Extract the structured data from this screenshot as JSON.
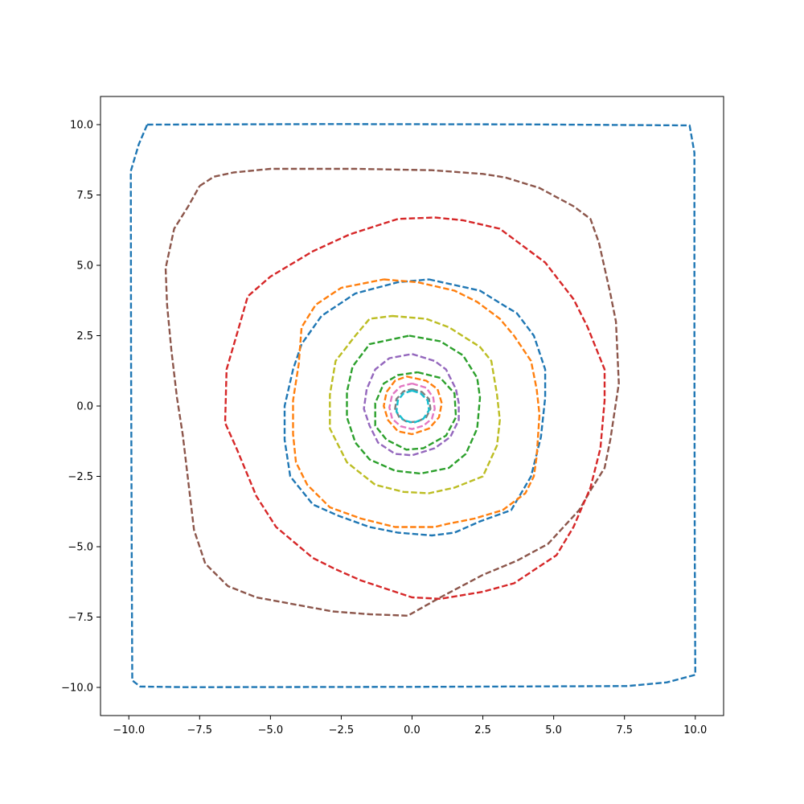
{
  "chart_data": {
    "type": "line",
    "title": "",
    "xlabel": "",
    "ylabel": "",
    "xlim": [
      -11,
      11
    ],
    "ylim": [
      -11,
      11
    ],
    "grid": false,
    "xticks": [
      -10.0,
      -7.5,
      -5.0,
      -2.5,
      0.0,
      2.5,
      5.0,
      7.5,
      10.0
    ],
    "yticks": [
      -10.0,
      -7.5,
      -5.0,
      -2.5,
      0.0,
      2.5,
      5.0,
      7.5,
      10.0
    ],
    "xtick_labels": [
      "−10.0",
      "−7.5",
      "−5.0",
      "−2.5",
      "0.0",
      "2.5",
      "5.0",
      "7.5",
      "10.0"
    ],
    "ytick_labels": [
      "−10.0",
      "−7.5",
      "−5.0",
      "−2.5",
      "0.0",
      "2.5",
      "5.0",
      "7.5",
      "10.0"
    ],
    "series": [
      {
        "color": "#1f77b4",
        "points": [
          [
            -9.35,
            10.0
          ],
          [
            -3.0,
            10.02
          ],
          [
            4.0,
            10.01
          ],
          [
            9.8,
            9.97
          ],
          [
            9.97,
            9.0
          ],
          [
            9.97,
            2.0
          ],
          [
            9.98,
            -5.0
          ],
          [
            10.0,
            -9.55
          ],
          [
            9.0,
            -9.82
          ],
          [
            7.6,
            -9.95
          ],
          [
            0.0,
            -9.98
          ],
          [
            -8.0,
            -9.99
          ],
          [
            -9.6,
            -9.97
          ],
          [
            -9.88,
            -9.75
          ],
          [
            -9.9,
            -5.0
          ],
          [
            -9.92,
            2.0
          ],
          [
            -9.93,
            8.35
          ],
          [
            -9.65,
            9.3
          ],
          [
            -9.35,
            10.0
          ]
        ]
      },
      {
        "color": "#8c564b",
        "points": [
          [
            -7.5,
            7.82
          ],
          [
            -7.0,
            8.15
          ],
          [
            -6.3,
            8.3
          ],
          [
            -5.0,
            8.43
          ],
          [
            -2.0,
            8.43
          ],
          [
            0.7,
            8.38
          ],
          [
            2.5,
            8.25
          ],
          [
            3.3,
            8.12
          ],
          [
            4.5,
            7.75
          ],
          [
            5.7,
            7.1
          ],
          [
            6.3,
            6.65
          ],
          [
            6.6,
            5.8
          ],
          [
            7.0,
            4.0
          ],
          [
            7.2,
            3.0
          ],
          [
            7.3,
            0.8
          ],
          [
            7.0,
            -1.2
          ],
          [
            6.8,
            -2.2
          ],
          [
            6.3,
            -3.0
          ],
          [
            5.9,
            -3.7
          ],
          [
            4.8,
            -4.9
          ],
          [
            3.7,
            -5.5
          ],
          [
            2.5,
            -6.0
          ],
          [
            1.0,
            -6.8
          ],
          [
            -0.15,
            -7.45
          ],
          [
            -1.5,
            -7.4
          ],
          [
            -2.8,
            -7.3
          ],
          [
            -5.5,
            -6.8
          ],
          [
            -6.5,
            -6.4
          ],
          [
            -7.3,
            -5.6
          ],
          [
            -7.7,
            -4.4
          ],
          [
            -8.1,
            -1.0
          ],
          [
            -8.3,
            0.3
          ],
          [
            -8.5,
            2.0
          ],
          [
            -8.65,
            3.6
          ],
          [
            -8.7,
            4.9
          ],
          [
            -8.4,
            6.3
          ],
          [
            -7.9,
            7.1
          ],
          [
            -7.5,
            7.82
          ]
        ]
      },
      {
        "color": "#d62728",
        "points": [
          [
            0.8,
            6.7
          ],
          [
            1.8,
            6.6
          ],
          [
            3.1,
            6.3
          ],
          [
            4.7,
            5.1
          ],
          [
            5.7,
            3.8
          ],
          [
            6.2,
            2.8
          ],
          [
            6.8,
            1.3
          ],
          [
            6.8,
            0.2
          ],
          [
            6.65,
            -1.5
          ],
          [
            6.3,
            -2.9
          ],
          [
            5.7,
            -4.3
          ],
          [
            5.1,
            -5.3
          ],
          [
            3.6,
            -6.3
          ],
          [
            2.5,
            -6.6
          ],
          [
            1.0,
            -6.85
          ],
          [
            0.0,
            -6.8
          ],
          [
            -1.8,
            -6.2
          ],
          [
            -2.7,
            -5.8
          ],
          [
            -3.5,
            -5.4
          ],
          [
            -4.8,
            -4.3
          ],
          [
            -5.5,
            -3.2
          ],
          [
            -6.2,
            -1.5
          ],
          [
            -6.6,
            -0.6
          ],
          [
            -6.55,
            1.3
          ],
          [
            -6.2,
            2.5
          ],
          [
            -5.8,
            3.9
          ],
          [
            -5.0,
            4.6
          ],
          [
            -3.5,
            5.5
          ],
          [
            -2.2,
            6.1
          ],
          [
            -0.5,
            6.65
          ],
          [
            0.8,
            6.7
          ]
        ]
      },
      {
        "color": "#1f77b4",
        "points": [
          [
            0.6,
            4.5
          ],
          [
            1.5,
            4.3
          ],
          [
            2.4,
            4.1
          ],
          [
            3.2,
            3.6
          ],
          [
            3.7,
            3.3
          ],
          [
            4.3,
            2.5
          ],
          [
            4.7,
            1.3
          ],
          [
            4.7,
            0.3
          ],
          [
            4.55,
            -1.1
          ],
          [
            4.2,
            -2.5
          ],
          [
            3.5,
            -3.7
          ],
          [
            2.4,
            -4.1
          ],
          [
            1.5,
            -4.5
          ],
          [
            0.7,
            -4.6
          ],
          [
            -0.5,
            -4.5
          ],
          [
            -1.5,
            -4.3
          ],
          [
            -2.6,
            -3.9
          ],
          [
            -3.5,
            -3.5
          ],
          [
            -4.3,
            -2.5
          ],
          [
            -4.5,
            -1.2
          ],
          [
            -4.5,
            0.0
          ],
          [
            -4.2,
            1.3
          ],
          [
            -3.9,
            2.2
          ],
          [
            -3.2,
            3.2
          ],
          [
            -2.0,
            4.0
          ],
          [
            -0.5,
            4.4
          ],
          [
            0.6,
            4.5
          ]
        ]
      },
      {
        "color": "#ff7f0e",
        "points": [
          [
            -1.0,
            4.5
          ],
          [
            -0.4,
            4.45
          ],
          [
            0.2,
            4.4
          ],
          [
            1.5,
            4.1
          ],
          [
            2.3,
            3.7
          ],
          [
            3.1,
            3.1
          ],
          [
            3.6,
            2.5
          ],
          [
            4.2,
            1.6
          ],
          [
            4.4,
            0.6
          ],
          [
            4.5,
            -0.3
          ],
          [
            4.4,
            -1.8
          ],
          [
            4.3,
            -2.5
          ],
          [
            4.0,
            -3.1
          ],
          [
            3.2,
            -3.7
          ],
          [
            2.2,
            -4.0
          ],
          [
            1.2,
            -4.2
          ],
          [
            0.8,
            -4.3
          ],
          [
            -0.6,
            -4.3
          ],
          [
            -1.8,
            -4.0
          ],
          [
            -2.9,
            -3.6
          ],
          [
            -3.7,
            -2.8
          ],
          [
            -4.1,
            -2.0
          ],
          [
            -4.2,
            -1.0
          ],
          [
            -4.2,
            0.2
          ],
          [
            -4.0,
            1.5
          ],
          [
            -3.9,
            2.8
          ],
          [
            -3.4,
            3.6
          ],
          [
            -2.5,
            4.2
          ],
          [
            -1.0,
            4.5
          ]
        ]
      },
      {
        "color": "#bcbd22",
        "points": [
          [
            -0.7,
            3.2
          ],
          [
            0.5,
            3.1
          ],
          [
            1.3,
            2.8
          ],
          [
            2.4,
            2.1
          ],
          [
            2.8,
            1.6
          ],
          [
            3.0,
            0.4
          ],
          [
            3.1,
            -0.5
          ],
          [
            3.0,
            -1.4
          ],
          [
            2.5,
            -2.5
          ],
          [
            1.5,
            -2.9
          ],
          [
            0.6,
            -3.1
          ],
          [
            -0.3,
            -3.05
          ],
          [
            -1.3,
            -2.8
          ],
          [
            -2.3,
            -2.0
          ],
          [
            -2.9,
            -0.8
          ],
          [
            -2.9,
            0.4
          ],
          [
            -2.7,
            1.6
          ],
          [
            -2.0,
            2.5
          ],
          [
            -1.5,
            3.1
          ],
          [
            -0.7,
            3.2
          ]
        ]
      },
      {
        "color": "#2ca02c",
        "points": [
          [
            -0.1,
            2.5
          ],
          [
            1.0,
            2.3
          ],
          [
            1.8,
            1.8
          ],
          [
            2.3,
            1.0
          ],
          [
            2.4,
            0.3
          ],
          [
            2.3,
            -0.8
          ],
          [
            1.9,
            -1.7
          ],
          [
            1.3,
            -2.2
          ],
          [
            0.3,
            -2.4
          ],
          [
            -0.6,
            -2.3
          ],
          [
            -1.5,
            -1.9
          ],
          [
            -2.0,
            -1.3
          ],
          [
            -2.3,
            -0.4
          ],
          [
            -2.3,
            0.5
          ],
          [
            -2.1,
            1.4
          ],
          [
            -1.5,
            2.2
          ],
          [
            -0.1,
            2.5
          ]
        ]
      },
      {
        "color": "#9467bd",
        "points": [
          [
            0.0,
            1.85
          ],
          [
            0.8,
            1.6
          ],
          [
            1.2,
            1.3
          ],
          [
            1.55,
            0.6
          ],
          [
            1.65,
            0.1
          ],
          [
            1.65,
            -0.5
          ],
          [
            1.35,
            -1.1
          ],
          [
            0.8,
            -1.5
          ],
          [
            0.0,
            -1.75
          ],
          [
            -0.6,
            -1.7
          ],
          [
            -1.2,
            -1.3
          ],
          [
            -1.5,
            -0.7
          ],
          [
            -1.7,
            -0.1
          ],
          [
            -1.6,
            0.6
          ],
          [
            -1.3,
            1.3
          ],
          [
            -0.8,
            1.7
          ],
          [
            0.0,
            1.85
          ]
        ]
      },
      {
        "color": "#2ca02c",
        "points": [
          [
            0.2,
            1.2
          ],
          [
            1.0,
            1.0
          ],
          [
            1.5,
            0.45
          ],
          [
            1.55,
            -0.4
          ],
          [
            1.2,
            -1.05
          ],
          [
            0.4,
            -1.5
          ],
          [
            -0.2,
            -1.55
          ],
          [
            -0.9,
            -1.2
          ],
          [
            -1.3,
            -0.7
          ],
          [
            -1.3,
            0.1
          ],
          [
            -1.0,
            0.8
          ],
          [
            -0.5,
            1.1
          ],
          [
            0.2,
            1.2
          ]
        ]
      },
      {
        "color": "#ff7f0e",
        "points": [
          [
            -0.2,
            1.05
          ],
          [
            0.5,
            0.9
          ],
          [
            0.9,
            0.6
          ],
          [
            1.05,
            0.1
          ],
          [
            0.95,
            -0.4
          ],
          [
            0.6,
            -0.8
          ],
          [
            0.0,
            -1.0
          ],
          [
            -0.5,
            -0.9
          ],
          [
            -0.85,
            -0.5
          ],
          [
            -1.0,
            0.0
          ],
          [
            -0.9,
            0.5
          ],
          [
            -0.6,
            0.9
          ],
          [
            -0.2,
            1.05
          ]
        ]
      },
      {
        "color": "#e377c2",
        "points": [
          [
            0.0,
            0.8
          ],
          [
            0.5,
            0.65
          ],
          [
            0.75,
            0.3
          ],
          [
            0.8,
            -0.1
          ],
          [
            0.7,
            -0.45
          ],
          [
            0.4,
            -0.7
          ],
          [
            0.0,
            -0.82
          ],
          [
            -0.4,
            -0.72
          ],
          [
            -0.7,
            -0.45
          ],
          [
            -0.8,
            -0.05
          ],
          [
            -0.7,
            0.4
          ],
          [
            -0.4,
            0.7
          ],
          [
            0.0,
            0.8
          ]
        ]
      },
      {
        "color": "#7f7f7f",
        "points": [
          [
            0.0,
            0.6
          ],
          [
            0.35,
            0.5
          ],
          [
            0.6,
            0.25
          ],
          [
            0.65,
            -0.1
          ],
          [
            0.5,
            -0.4
          ],
          [
            0.2,
            -0.55
          ],
          [
            -0.15,
            -0.58
          ],
          [
            -0.45,
            -0.4
          ],
          [
            -0.6,
            -0.1
          ],
          [
            -0.55,
            0.25
          ],
          [
            -0.3,
            0.52
          ],
          [
            0.0,
            0.6
          ]
        ]
      },
      {
        "color": "#17becf",
        "points": [
          [
            0.0,
            0.55
          ],
          [
            0.3,
            0.45
          ],
          [
            0.55,
            0.2
          ],
          [
            0.6,
            -0.15
          ],
          [
            0.4,
            -0.45
          ],
          [
            0.05,
            -0.6
          ],
          [
            -0.3,
            -0.5
          ],
          [
            -0.55,
            -0.2
          ],
          [
            -0.5,
            0.2
          ],
          [
            -0.3,
            0.45
          ],
          [
            0.0,
            0.55
          ]
        ]
      }
    ]
  }
}
